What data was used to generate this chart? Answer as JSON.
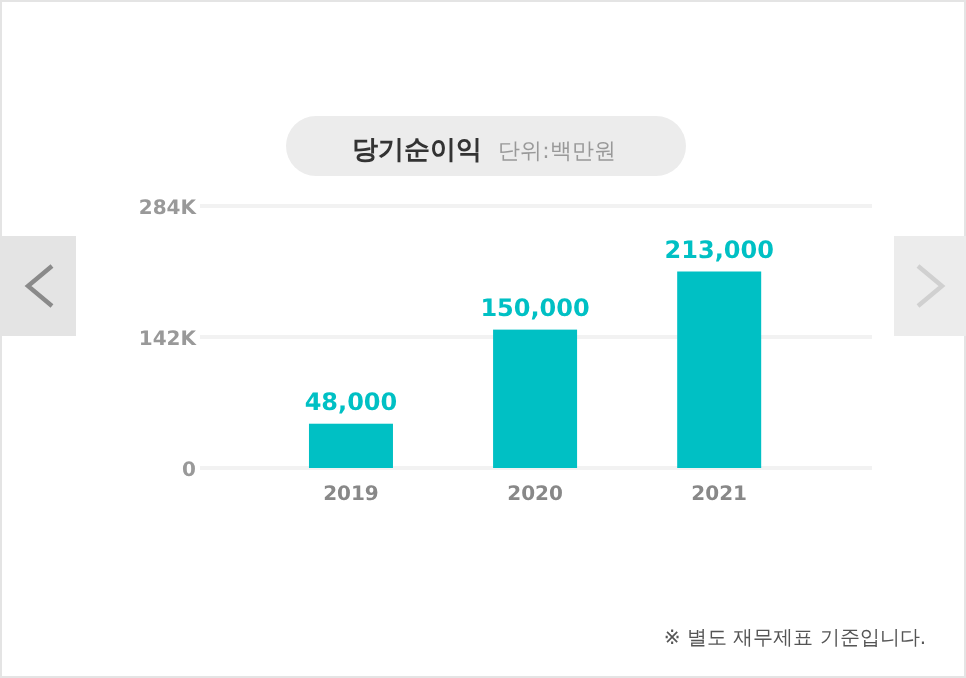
{
  "chart_data": {
    "type": "bar",
    "title": "당기순이익",
    "subtitle": "단위:백만원",
    "categories": [
      "2019",
      "2020",
      "2021"
    ],
    "values": [
      48000,
      150000,
      213000
    ],
    "color": "#00c0c4",
    "ylim": [
      0,
      284000
    ],
    "yticks": [
      0,
      {
        "value": 142000,
        "label": "142K"
      },
      {
        "value": 284000,
        "label": "284K"
      }
    ],
    "value_labels": [
      "48,000",
      "150,000",
      "213,000"
    ],
    "grid": "y",
    "annotations": [
      "※ 별도 재무제표 기준입니다."
    ]
  }
}
